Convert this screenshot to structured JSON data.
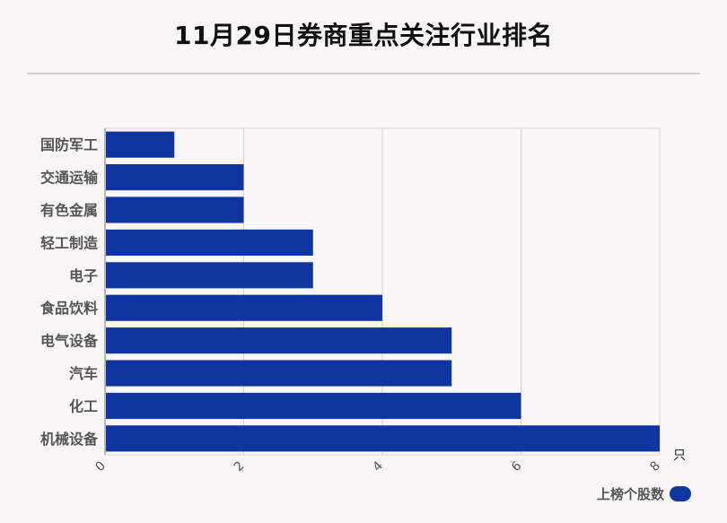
{
  "title": "11月29日券商重点关注行业排名",
  "chart_data": {
    "type": "bar",
    "orientation": "horizontal",
    "categories": [
      "国防军工",
      "交通运输",
      "有色金属",
      "轻工制造",
      "电子",
      "食品饮料",
      "电气设备",
      "汽车",
      "化工",
      "机械设备"
    ],
    "series": [
      {
        "name": "上榜个股数",
        "values": [
          1,
          2,
          2,
          3,
          3,
          4,
          5,
          5,
          6,
          8
        ]
      }
    ],
    "xlim": [
      0,
      8
    ],
    "xticks": [
      "0",
      "2",
      "4",
      "6",
      "8"
    ],
    "xunit": "只",
    "grid": true,
    "legend_position": "bottom-right",
    "bar_color": "#0f35a0"
  }
}
